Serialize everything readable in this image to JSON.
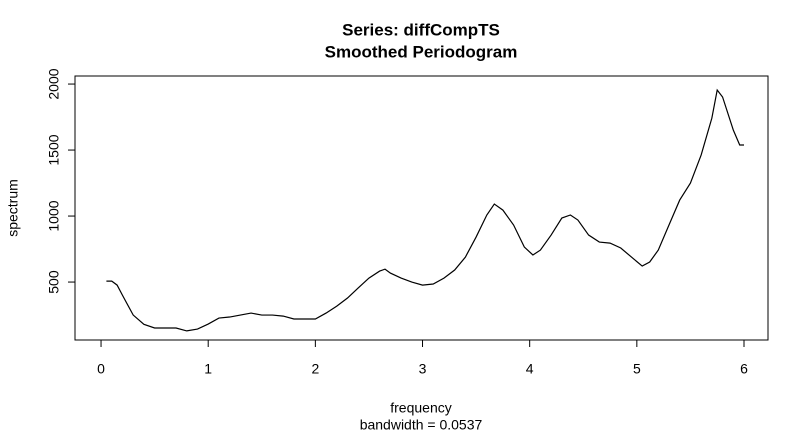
{
  "chart_data": {
    "type": "line",
    "title": "Series: diffCompTS",
    "subtitle": "Smoothed Periodogram",
    "x_label": "frequency",
    "x_sublabel": "bandwidth = 0.0537",
    "y_label": "spectrum",
    "color": "#000000",
    "x": [
      0.05,
      0.1,
      0.15,
      0.2,
      0.3,
      0.4,
      0.5,
      0.6,
      0.7,
      0.8,
      0.9,
      1.0,
      1.1,
      1.2,
      1.3,
      1.4,
      1.5,
      1.6,
      1.7,
      1.8,
      1.9,
      2.0,
      2.1,
      2.2,
      2.3,
      2.4,
      2.5,
      2.6,
      2.65,
      2.7,
      2.8,
      2.9,
      3.0,
      3.1,
      3.2,
      3.3,
      3.4,
      3.5,
      3.6,
      3.67,
      3.75,
      3.85,
      3.95,
      4.03,
      4.1,
      4.2,
      4.3,
      4.38,
      4.45,
      4.55,
      4.65,
      4.75,
      4.85,
      4.95,
      5.05,
      5.12,
      5.2,
      5.3,
      5.4,
      5.5,
      5.6,
      5.7,
      5.75,
      5.8,
      5.9,
      5.96,
      6.0
    ],
    "values": [
      507,
      507,
      477,
      400,
      250,
      180,
      152,
      152,
      152,
      130,
      144,
      182,
      227,
      235,
      250,
      265,
      250,
      250,
      242,
      220,
      220,
      220,
      265,
      318,
      379,
      455,
      530,
      583,
      598,
      568,
      530,
      500,
      477,
      485,
      530,
      591,
      689,
      841,
      1008,
      1091,
      1045,
      932,
      765,
      705,
      742,
      856,
      985,
      1008,
      970,
      856,
      803,
      795,
      758,
      689,
      621,
      652,
      742,
      932,
      1121,
      1250,
      1462,
      1742,
      1955,
      1902,
      1652,
      1538,
      1538
    ],
    "xlim": [
      -0.243,
      6.224
    ],
    "ylim": [
      61,
      2061
    ],
    "xticks": [
      0,
      1,
      2,
      3,
      4,
      5,
      6
    ],
    "yticks": [
      500,
      1000,
      1500,
      2000
    ]
  }
}
